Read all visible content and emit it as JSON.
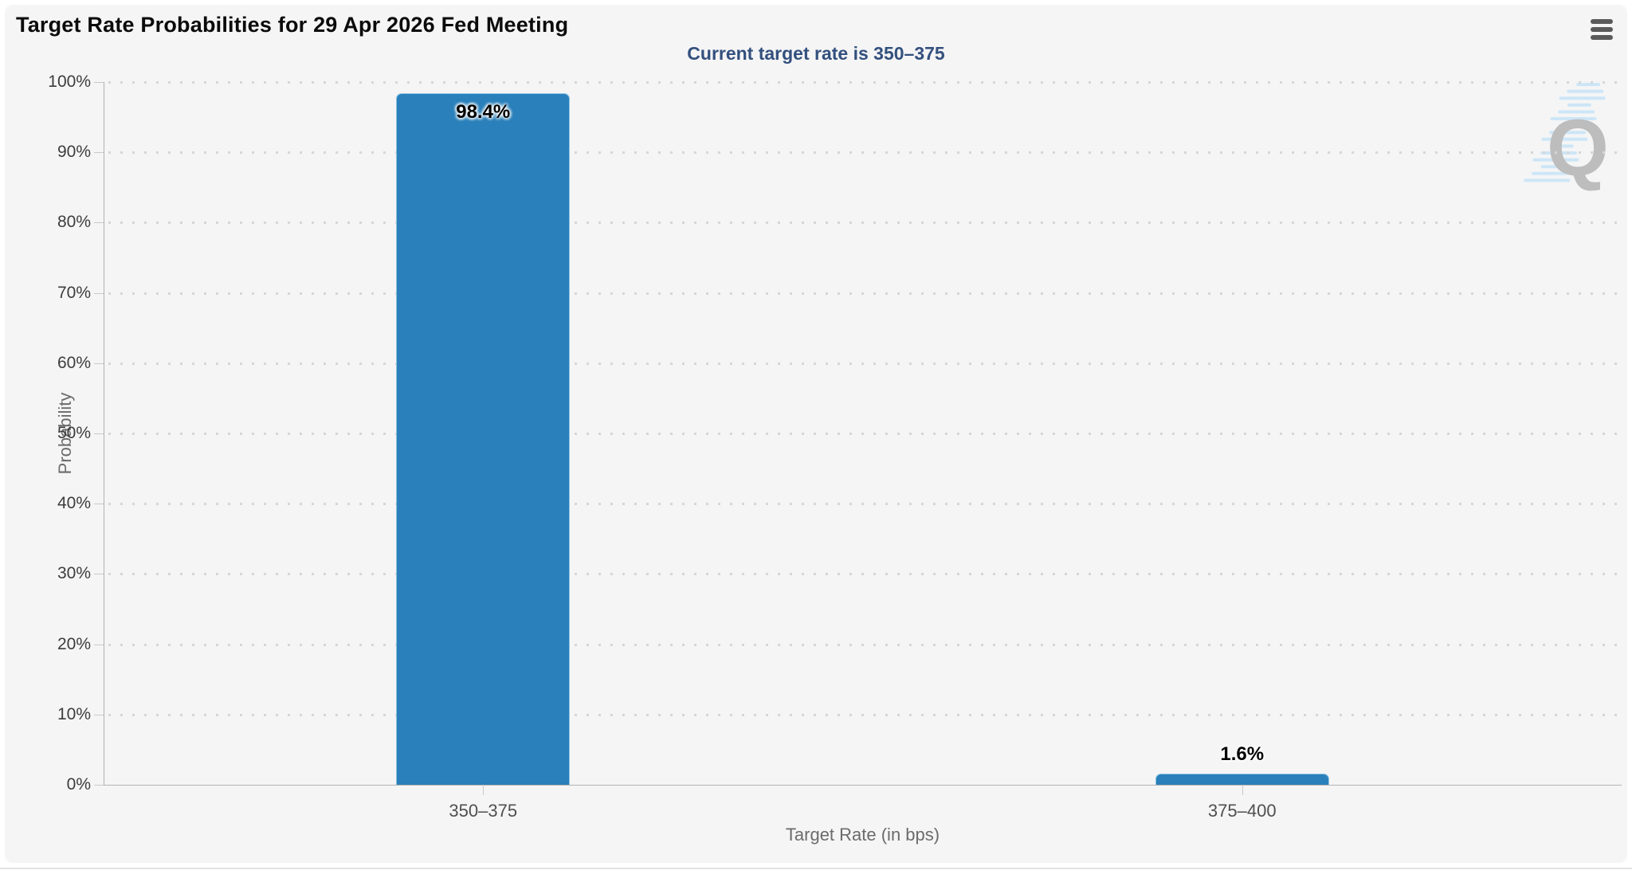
{
  "chart_data": {
    "type": "bar",
    "title": "Target Rate Probabilities for 29 Apr 2026 Fed Meeting",
    "subtitle": "Current target rate is 350–375",
    "categories": [
      "350–375",
      "375–400"
    ],
    "values": [
      98.4,
      1.6
    ],
    "value_labels": [
      "98.4%",
      "1.6%"
    ],
    "xlabel": "Target Rate (in bps)",
    "ylabel": "Probability",
    "ylim": [
      0,
      100
    ],
    "ytick_step": 10,
    "ytick_labels": [
      "0%",
      "10%",
      "20%",
      "30%",
      "40%",
      "50%",
      "60%",
      "70%",
      "80%",
      "90%",
      "100%"
    ],
    "grid": "horizontal-dotted",
    "legend": "none",
    "colors": {
      "bar": "#2a80ba",
      "bar_edge": "#8ec4e4",
      "subtitle": "#33507d",
      "grid_dot": "#d6d6d6",
      "watermark_gray": "#b4b4b4",
      "watermark_blue": "#c7e4f8"
    }
  },
  "icons": {
    "menu": "hamburger-icon",
    "watermark_letter": "Q"
  }
}
